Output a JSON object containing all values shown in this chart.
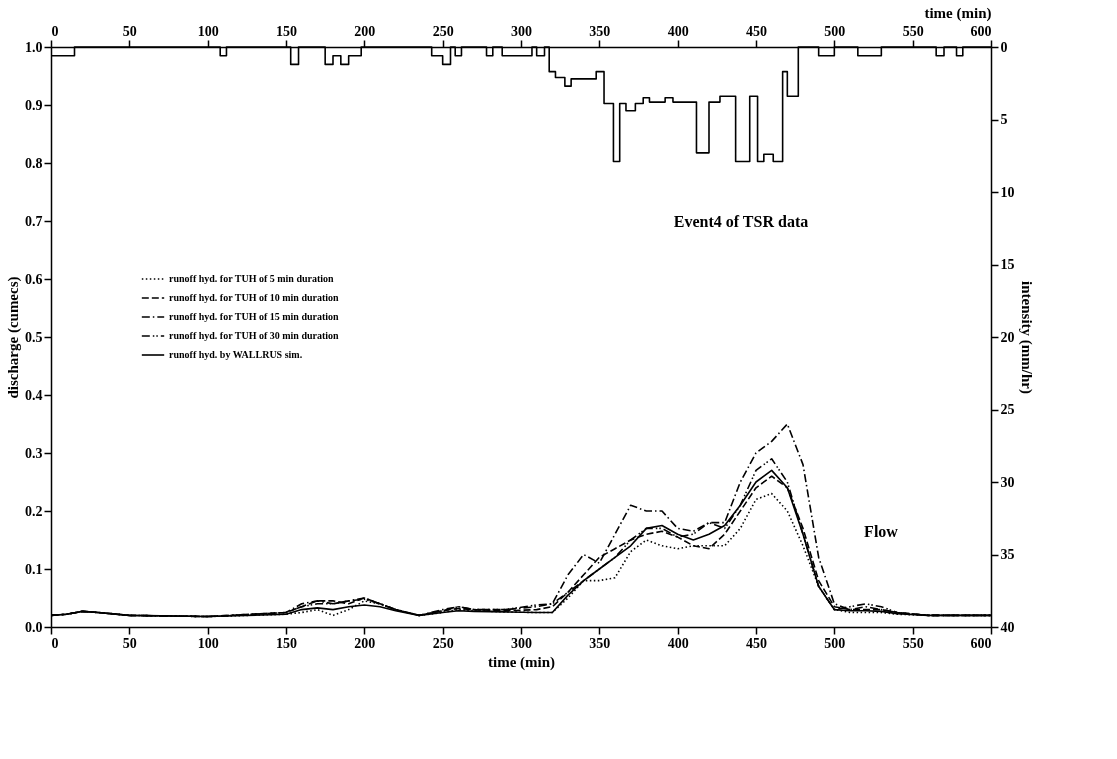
{
  "chart_data": {
    "type": "line",
    "xlabel": "time (min)",
    "x2label": "time (min)",
    "ylabel": "discharge (cumecs)",
    "y2label": "intensity (mm/hr)",
    "x": [
      0,
      10,
      20,
      30,
      50,
      100,
      150,
      160,
      170,
      180,
      190,
      200,
      210,
      220,
      235,
      250,
      260,
      270,
      290,
      310,
      320,
      330,
      340,
      350,
      360,
      370,
      380,
      390,
      400,
      410,
      420,
      430,
      440,
      450,
      460,
      470,
      480,
      490,
      500,
      510,
      520,
      530,
      540,
      560,
      600
    ],
    "series": [
      {
        "name": "runoff hyd. for TUH of 5 min duration",
        "color": "#000000",
        "line_style": "dotted",
        "values": [
          0.02,
          0.022,
          0.027,
          0.025,
          0.02,
          0.018,
          0.022,
          0.025,
          0.03,
          0.02,
          0.03,
          0.045,
          0.04,
          0.03,
          0.02,
          0.025,
          0.03,
          0.028,
          0.026,
          0.025,
          0.025,
          0.05,
          0.08,
          0.08,
          0.085,
          0.13,
          0.15,
          0.14,
          0.135,
          0.14,
          0.14,
          0.14,
          0.17,
          0.22,
          0.23,
          0.2,
          0.14,
          0.07,
          0.03,
          0.025,
          0.025,
          0.025,
          0.022,
          0.02,
          0.02
        ]
      },
      {
        "name": "runoff hyd. for TUH of 10 min duration",
        "color": "#000000",
        "line_style": "dashed",
        "values": [
          0.02,
          0.022,
          0.027,
          0.025,
          0.02,
          0.018,
          0.025,
          0.035,
          0.045,
          0.045,
          0.04,
          0.05,
          0.04,
          0.03,
          0.02,
          0.028,
          0.032,
          0.03,
          0.028,
          0.03,
          0.035,
          0.06,
          0.09,
          0.12,
          0.135,
          0.15,
          0.16,
          0.165,
          0.155,
          0.14,
          0.135,
          0.16,
          0.2,
          0.24,
          0.26,
          0.24,
          0.17,
          0.08,
          0.035,
          0.03,
          0.03,
          0.03,
          0.025,
          0.02,
          0.02
        ]
      },
      {
        "name": "runoff hyd. for TUH of 15 min duration",
        "color": "#000000",
        "line_style": "dashdot",
        "values": [
          0.02,
          0.022,
          0.027,
          0.025,
          0.02,
          0.018,
          0.025,
          0.04,
          0.045,
          0.04,
          0.045,
          0.05,
          0.04,
          0.03,
          0.02,
          0.03,
          0.035,
          0.03,
          0.03,
          0.035,
          0.04,
          0.09,
          0.125,
          0.11,
          0.16,
          0.21,
          0.2,
          0.2,
          0.17,
          0.165,
          0.18,
          0.18,
          0.25,
          0.3,
          0.32,
          0.35,
          0.28,
          0.12,
          0.04,
          0.03,
          0.035,
          0.03,
          0.025,
          0.02,
          0.02
        ]
      },
      {
        "name": "runoff hyd. for TUH of 30 min duration",
        "color": "#000000",
        "line_style": "dashdotdot",
        "values": [
          0.02,
          0.022,
          0.027,
          0.025,
          0.02,
          0.018,
          0.025,
          0.035,
          0.04,
          0.04,
          0.045,
          0.048,
          0.04,
          0.03,
          0.02,
          0.028,
          0.035,
          0.03,
          0.03,
          0.038,
          0.04,
          0.06,
          0.08,
          0.1,
          0.12,
          0.15,
          0.17,
          0.17,
          0.155,
          0.16,
          0.18,
          0.17,
          0.21,
          0.27,
          0.29,
          0.25,
          0.16,
          0.07,
          0.03,
          0.035,
          0.04,
          0.035,
          0.025,
          0.02,
          0.02
        ]
      },
      {
        "name": "runoff hyd. by WALLRUS sim.",
        "color": "#000000",
        "line_style": "solid",
        "values": [
          0.02,
          0.022,
          0.027,
          0.025,
          0.02,
          0.018,
          0.022,
          0.03,
          0.033,
          0.03,
          0.035,
          0.038,
          0.035,
          0.028,
          0.02,
          0.025,
          0.028,
          0.027,
          0.026,
          0.025,
          0.025,
          0.055,
          0.08,
          0.1,
          0.12,
          0.14,
          0.17,
          0.175,
          0.16,
          0.15,
          0.16,
          0.175,
          0.21,
          0.25,
          0.27,
          0.24,
          0.16,
          0.07,
          0.03,
          0.028,
          0.028,
          0.027,
          0.023,
          0.02,
          0.02
        ]
      },
      {
        "type": "step",
        "axis": "y2",
        "color": "#000000",
        "line_style": "solid",
        "x": [
          0,
          15,
          108,
          112,
          153,
          158,
          175,
          180,
          185,
          190,
          198,
          243,
          250,
          255,
          258,
          262,
          278,
          282,
          288,
          307,
          310,
          315,
          318,
          322,
          328,
          332,
          348,
          353,
          359,
          363,
          367,
          373,
          378,
          382,
          392,
          397,
          412,
          420,
          427,
          437,
          446,
          451,
          455,
          461,
          467,
          470,
          477,
          490,
          500,
          515,
          530,
          565,
          570,
          578,
          582,
          600
        ],
        "values": [
          0.6,
          0,
          0.6,
          0,
          1.2,
          0,
          1.2,
          0.6,
          1.2,
          0.6,
          0,
          0.6,
          1.2,
          0,
          0.6,
          0,
          0.6,
          0,
          0.6,
          0,
          0.6,
          0,
          1.7,
          2.1,
          2.7,
          2.2,
          1.7,
          3.9,
          7.9,
          3.9,
          4.4,
          3.9,
          3.5,
          3.8,
          3.5,
          3.8,
          7.3,
          3.8,
          3.4,
          7.9,
          3.4,
          7.9,
          7.4,
          7.9,
          1.7,
          3.4,
          0,
          0.6,
          0,
          0.6,
          0,
          0.6,
          0,
          0.6,
          0,
          0
        ]
      }
    ],
    "xlim": [
      0,
      600
    ],
    "xticks": [
      0,
      50,
      100,
      150,
      200,
      250,
      300,
      350,
      400,
      450,
      500,
      550,
      600
    ],
    "x2lim": [
      0,
      600
    ],
    "x2ticks": [
      0,
      50,
      100,
      150,
      200,
      250,
      300,
      350,
      400,
      450,
      500,
      550,
      600
    ],
    "ylim": [
      0,
      1
    ],
    "yticks": [
      {
        "value": 0,
        "label": "0.0"
      },
      0.1,
      0.2,
      0.3,
      0.4,
      0.5,
      0.6,
      0.7,
      0.8,
      0.9,
      {
        "value": 1,
        "label": "1.0"
      }
    ],
    "y2lim": [
      40,
      0
    ],
    "y2ticks": [
      0,
      5,
      10,
      15,
      20,
      25,
      30,
      35,
      40
    ],
    "annotations": [
      "Event4 of TSR data",
      "Flow"
    ],
    "legend": "left",
    "grid": false,
    "marker": "none"
  }
}
